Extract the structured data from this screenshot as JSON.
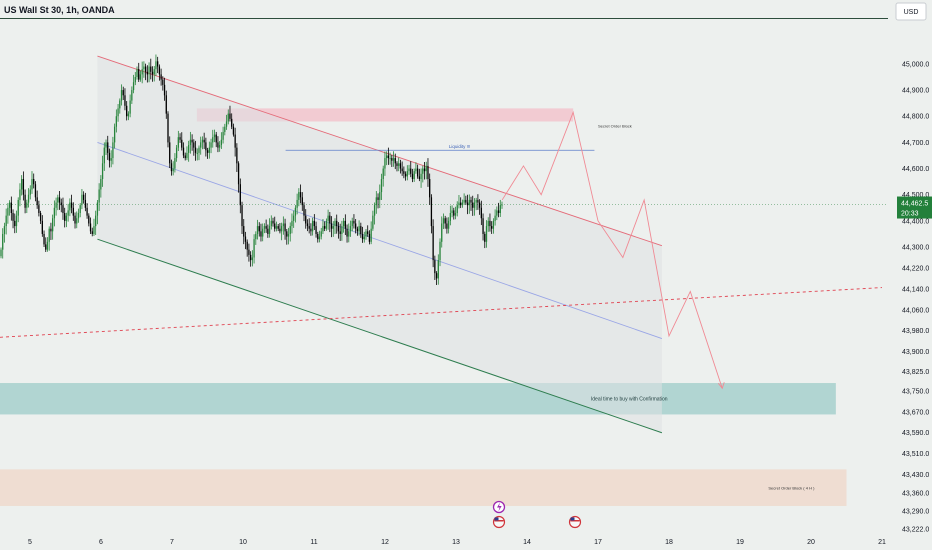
{
  "chart_data": {
    "type": "candlestick",
    "title": "US Wall St 30, 1h, OANDA",
    "currency": "USD",
    "ylim": [
      43222,
      45080
    ],
    "y_ticks": [
      "45,000.0",
      "44,900.0",
      "44,800.0",
      "44,700.0",
      "44,600.0",
      "44,500.0",
      "44,400.0",
      "44,300.0",
      "44,220.0",
      "44,140.0",
      "44,060.0",
      "43,980.0",
      "43,900.0",
      "43,825.0",
      "43,750.0",
      "43,670.0",
      "43,590.0",
      "43,510.0",
      "43,430.0",
      "43,360.0",
      "43,290.0",
      "43,222.0"
    ],
    "x_ticks": [
      {
        "label": "5",
        "x": 5
      },
      {
        "label": "6",
        "x": 6
      },
      {
        "label": "7",
        "x": 7
      },
      {
        "label": "10",
        "x": 8
      },
      {
        "label": "11",
        "x": 9
      },
      {
        "label": "12",
        "x": 10
      },
      {
        "label": "13",
        "x": 11
      },
      {
        "label": "14",
        "x": 12
      },
      {
        "label": "17",
        "x": 13
      },
      {
        "label": "18",
        "x": 14
      },
      {
        "label": "19",
        "x": 15
      },
      {
        "label": "20",
        "x": 16
      },
      {
        "label": "21",
        "x": 17
      }
    ],
    "last_price": "44,462.5",
    "countdown": "20:33",
    "last_price_value": 44462.5,
    "colors": {
      "up": "#26833a",
      "down": "#000000",
      "bg": "#edf0ee",
      "channel_red": "#e8a0a8",
      "channel_green": "#2e7d4f",
      "mid": "#9aa6e6"
    },
    "candle_close": [
      44290,
      44350,
      44380,
      44420,
      44450,
      44470,
      44430,
      44400,
      44380,
      44420,
      44480,
      44520,
      44560,
      44500,
      44450,
      44470,
      44500,
      44520,
      44560,
      44540,
      44490,
      44460,
      44430,
      44400,
      44350,
      44310,
      44290,
      44320,
      44370,
      44360,
      44410,
      44450,
      44470,
      44490,
      44470,
      44460,
      44430,
      44400,
      44420,
      44440,
      44470,
      44450,
      44420,
      44390,
      44410,
      44430,
      44460,
      44500,
      44480,
      44450,
      44420,
      44390,
      44360,
      44350,
      44380,
      44420,
      44470,
      44520,
      44560,
      44620,
      44680,
      44700,
      44660,
      44630,
      44640,
      44700,
      44760,
      44800,
      44830,
      44860,
      44900,
      44880,
      44840,
      44800,
      44810,
      44860,
      44900,
      44930,
      44950,
      44980,
      44940,
      44960,
      44980,
      44990,
      44970,
      44960,
      44990,
      44970,
      44960,
      44980,
      45010,
      44990,
      44960,
      44940,
      44920,
      44880,
      44810,
      44700,
      44620,
      44590,
      44600,
      44640,
      44680,
      44720,
      44710,
      44680,
      44650,
      44640,
      44660,
      44690,
      44710,
      44700,
      44680,
      44660,
      44660,
      44680,
      44700,
      44710,
      44700,
      44670,
      44660,
      44680,
      44700,
      44720,
      44730,
      44700,
      44680,
      44690,
      44710,
      44740,
      44760,
      44780,
      44810,
      44790,
      44760,
      44730,
      44680,
      44620,
      44540,
      44460,
      44380,
      44340,
      44320,
      44290,
      44270,
      44250,
      44260,
      44330,
      44350,
      44380,
      44360,
      44340,
      44370,
      44380,
      44370,
      44350,
      44380,
      44400,
      44390,
      44370,
      44380,
      44370,
      44360,
      44380,
      44390,
      44360,
      44340,
      44350,
      44380,
      44400,
      44420,
      44450,
      44480,
      44510,
      44490,
      44460,
      44420,
      44390,
      44380,
      44370,
      44360,
      44400,
      44380,
      44350,
      44330,
      44340,
      44360,
      44380,
      44370,
      44400,
      44420,
      44390,
      44370,
      44380,
      44400,
      44380,
      44360,
      44350,
      44380,
      44400,
      44370,
      44340,
      44360,
      44380,
      44400,
      44390,
      44370,
      44360,
      44380,
      44350,
      44330,
      44340,
      44360,
      44350,
      44320,
      44370,
      44420,
      44460,
      44490,
      44480,
      44510,
      44560,
      44600,
      44640,
      44650,
      44640,
      44640,
      44630,
      44640,
      44620,
      44610,
      44620,
      44600,
      44590,
      44580,
      44570,
      44590,
      44600,
      44580,
      44560,
      44590,
      44600,
      44570,
      44560,
      44580,
      44600,
      44590,
      44610,
      44560,
      44490,
      44380,
      44250,
      44200,
      44180,
      44250,
      44320,
      44390,
      44410,
      44390,
      44370,
      44400,
      44430,
      44440,
      44420,
      44430,
      44460,
      44470,
      44460,
      44470,
      44480,
      44470,
      44460,
      44480,
      44470,
      44450,
      44470,
      44480,
      44470,
      44450,
      44410,
      44350,
      44320,
      44380,
      44400,
      44380,
      44370,
      44400,
      44420,
      44440,
      44430,
      44460,
      44462.5
    ],
    "channel_upper": {
      "from": {
        "x": 5.95,
        "y": 45030
      },
      "to": {
        "x": 13.9,
        "y": 44305
      }
    },
    "channel_lower": {
      "from": {
        "x": 5.95,
        "y": 44330
      },
      "to": {
        "x": 13.9,
        "y": 43590
      }
    },
    "channel_mid": {
      "from": {
        "x": 5.95,
        "y": 44700
      },
      "to": {
        "x": 13.9,
        "y": 43950
      }
    },
    "projection_path": [
      {
        "x": 11.65,
        "y": 44480
      },
      {
        "x": 11.95,
        "y": 44610
      },
      {
        "x": 12.2,
        "y": 44500
      },
      {
        "x": 12.65,
        "y": 44815
      },
      {
        "x": 13.0,
        "y": 44400
      },
      {
        "x": 13.35,
        "y": 44260
      },
      {
        "x": 13.65,
        "y": 44480
      },
      {
        "x": 14.0,
        "y": 43960
      },
      {
        "x": 14.3,
        "y": 44130
      },
      {
        "x": 14.75,
        "y": 43760
      }
    ],
    "dashed_trend": {
      "from": {
        "x": 4.0,
        "y": 43955
      },
      "to": {
        "x": 17.0,
        "y": 44145
      }
    },
    "liquidity_line": {
      "x1": 8.6,
      "x2": 12.95,
      "y": 44670
    },
    "zones": [
      {
        "name": "Secret Order Block",
        "x1": 7.35,
        "x2": 12.65,
        "y1": 44830,
        "y2": 44780,
        "color": "#f2c4cc",
        "label_x": 13.0
      },
      {
        "name": "Ideal time to buy with Confirmation",
        "x1": 4.0,
        "x2": 16.35,
        "y1": 43780,
        "y2": 43660,
        "color": "#a6d0cc",
        "label_x": 12.9
      },
      {
        "name": "Secret Order Block ( 4 H )",
        "x1": 4.0,
        "x2": 16.5,
        "y1": 43450,
        "y2": 43310,
        "color": "#efd9cc",
        "label_x": 15.4
      }
    ],
    "labels": {
      "liquidity": "Liquidity !!!",
      "sob": "Secret Order Block",
      "buy": "Ideal time to buy with Confirmation",
      "sob4h": "Secret Order Block ( 4 H )"
    }
  }
}
